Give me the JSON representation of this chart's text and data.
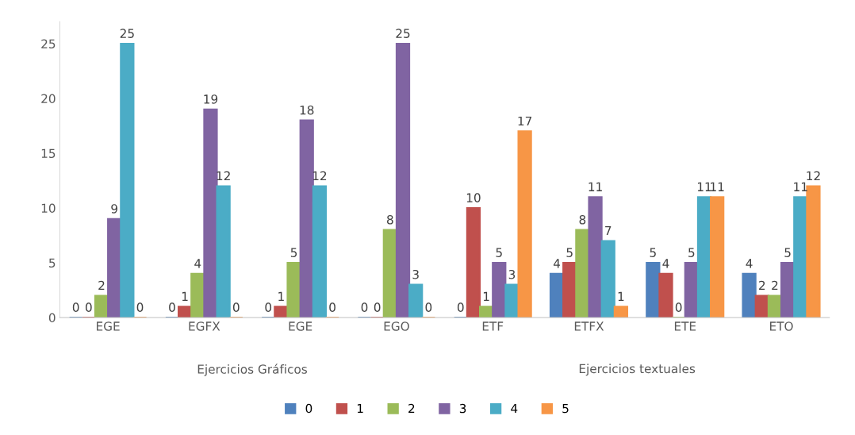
{
  "chart_data": {
    "type": "bar",
    "categories": [
      "EGE",
      "EGFX",
      "EGE",
      "EGO",
      "ETF",
      "ETFX",
      "ETE",
      "ETO"
    ],
    "series": [
      {
        "name": "0",
        "color": "#4f81bd",
        "values": [
          0,
          0,
          0,
          0,
          0,
          4,
          5,
          4
        ]
      },
      {
        "name": "1",
        "color": "#c0504d",
        "values": [
          0,
          1,
          1,
          0,
          10,
          5,
          4,
          2
        ]
      },
      {
        "name": "2",
        "color": "#9bbb59",
        "values": [
          2,
          4,
          5,
          8,
          1,
          8,
          0,
          2
        ]
      },
      {
        "name": "3",
        "color": "#8064a2",
        "values": [
          9,
          19,
          18,
          25,
          5,
          11,
          5,
          5
        ]
      },
      {
        "name": "4",
        "color": "#4bacc6",
        "values": [
          25,
          12,
          12,
          3,
          3,
          7,
          11,
          11
        ]
      },
      {
        "name": "5",
        "color": "#f79646",
        "values": [
          0,
          0,
          0,
          0,
          17,
          1,
          11,
          12
        ]
      }
    ],
    "ylim": [
      0,
      27
    ],
    "yticks": [
      0,
      5,
      10,
      15,
      20,
      25
    ],
    "annotations": [
      "Ejercicios Gráficos",
      "Ejercicios textuales"
    ],
    "data_labels": true,
    "grid": false,
    "legend": "bottom"
  }
}
